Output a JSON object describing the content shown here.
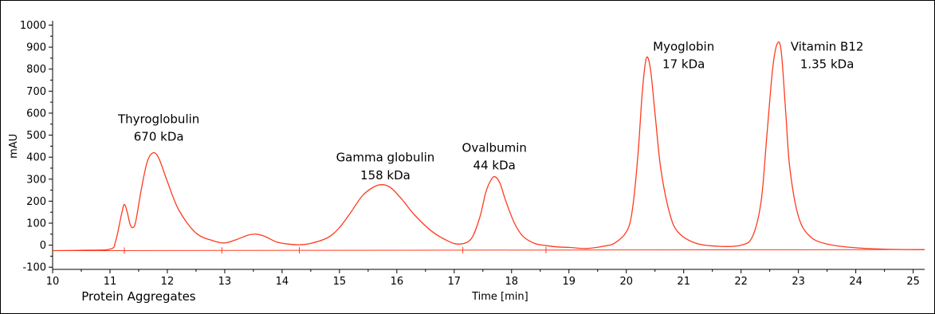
{
  "chart_data": {
    "type": "line",
    "title": "",
    "xlabel": "Time [min]",
    "ylabel": "mAU",
    "xlim": [
      10,
      25.2
    ],
    "ylim": [
      -110,
      1020
    ],
    "xticks": [
      "10",
      "11",
      "12",
      "13",
      "14",
      "15",
      "16",
      "17",
      "18",
      "19",
      "20",
      "21",
      "22",
      "23",
      "24",
      "25"
    ],
    "yticks": [
      "-100",
      "0",
      "100",
      "200",
      "300",
      "400",
      "500",
      "600",
      "700",
      "800",
      "900",
      "1000"
    ],
    "grid": false,
    "line_color": "#ff3b1f",
    "series": [
      {
        "x": [
          10.0,
          10.5,
          11.0,
          11.1,
          11.2,
          11.25,
          11.3,
          11.35,
          11.4,
          11.45,
          11.55,
          11.65,
          11.75,
          11.85,
          12.0,
          12.2,
          12.5,
          12.8,
          13.0,
          13.2,
          13.4,
          13.55,
          13.7,
          13.9,
          14.1,
          14.3,
          14.5,
          14.8,
          15.0,
          15.2,
          15.4,
          15.6,
          15.75,
          15.9,
          16.1,
          16.3,
          16.6,
          16.9,
          17.1,
          17.3,
          17.45,
          17.55,
          17.65,
          17.72,
          17.8,
          17.9,
          18.05,
          18.2,
          18.4,
          18.6,
          18.8,
          19.0,
          19.3,
          19.6,
          19.8,
          20.0,
          20.1,
          20.2,
          20.28,
          20.35,
          20.42,
          20.5,
          20.6,
          20.75,
          20.9,
          21.2,
          21.6,
          22.0,
          22.2,
          22.35,
          22.45,
          22.55,
          22.63,
          22.7,
          22.78,
          22.85,
          23.0,
          23.2,
          23.5,
          24.0,
          24.5,
          25.0,
          25.2
        ],
        "y": [
          -25,
          -23,
          -18,
          20,
          140,
          185,
          150,
          95,
          80,
          110,
          260,
          380,
          420,
          395,
          290,
          160,
          55,
          20,
          10,
          25,
          45,
          50,
          40,
          15,
          5,
          2,
          8,
          35,
          80,
          150,
          225,
          265,
          275,
          260,
          205,
          140,
          65,
          18,
          5,
          30,
          130,
          240,
          300,
          310,
          280,
          200,
          100,
          40,
          8,
          -2,
          -8,
          -10,
          -15,
          -5,
          10,
          60,
          150,
          400,
          700,
          850,
          800,
          600,
          350,
          150,
          60,
          10,
          -5,
          0,
          40,
          200,
          500,
          800,
          915,
          880,
          600,
          350,
          130,
          40,
          5,
          -12,
          -18,
          -20,
          -20
        ]
      }
    ],
    "annotations": [
      {
        "text": "Thyroglobulin",
        "x": 11.85,
        "y": 555
      },
      {
        "text": "670 kDa",
        "x": 11.85,
        "y": 475
      },
      {
        "text": "Gamma globulin",
        "x": 15.8,
        "y": 380
      },
      {
        "text": "158 kDa",
        "x": 15.8,
        "y": 300
      },
      {
        "text": "Ovalbumin",
        "x": 17.7,
        "y": 425
      },
      {
        "text": "44 kDa",
        "x": 17.7,
        "y": 345
      },
      {
        "text": "Myoglobin",
        "x": 21.0,
        "y": 885
      },
      {
        "text": "17 kDa",
        "x": 21.0,
        "y": 805
      },
      {
        "text": "Vitamin B12",
        "x": 23.5,
        "y": 885
      },
      {
        "text": "1.35 kDa",
        "x": 23.5,
        "y": 805
      }
    ],
    "footer_label": "Protein Aggregates",
    "integration_markers": [
      11.25,
      12.95,
      14.3,
      17.15,
      18.6
    ]
  }
}
